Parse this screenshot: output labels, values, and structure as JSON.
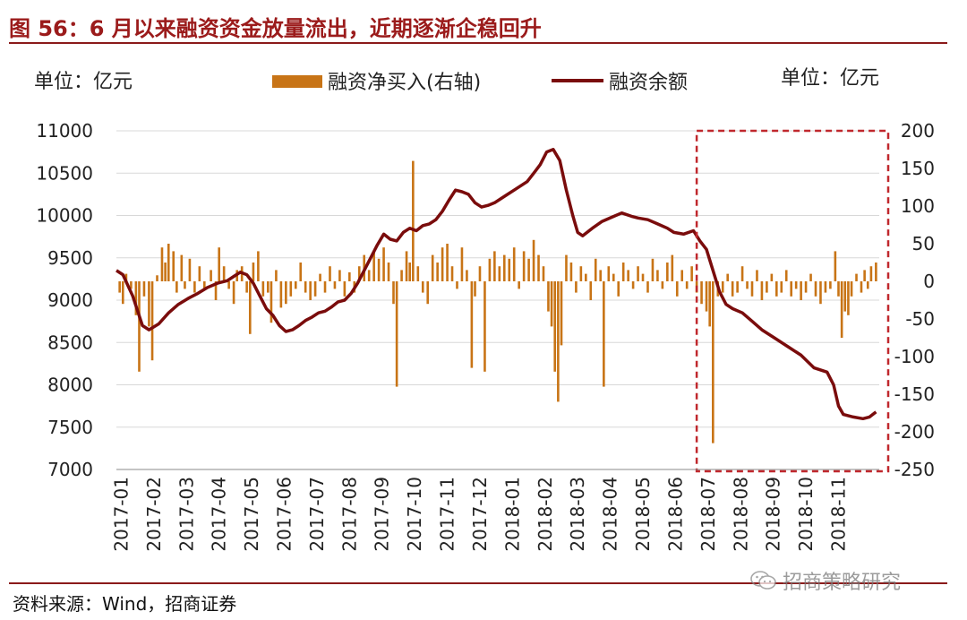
{
  "header": {
    "title": "图 56：6 月以来融资资金放量流出，近期逐渐企稳回升"
  },
  "footer": {
    "source": "资料来源：Wind，招商证券",
    "watermark": "招商策略研究"
  },
  "chart_data": {
    "type": "bar+line",
    "left_axis_unit": "单位：亿元",
    "right_axis_unit": "单位：亿元",
    "legend": [
      {
        "name": "融资净买入(右轴)",
        "kind": "bar",
        "color": "#c87416"
      },
      {
        "name": "融资余额",
        "kind": "line",
        "color": "#7a0c0c"
      }
    ],
    "colors": {
      "bar": "#c87416",
      "line": "#7a0c0c",
      "highlight_box": "#c0282d",
      "grid": "#d8d8d8"
    },
    "left_axis": {
      "min": 7000,
      "max": 11000,
      "ticks": [
        "11000",
        "10500",
        "10000",
        "9500",
        "9000",
        "8500",
        "8000",
        "7500",
        "7000"
      ]
    },
    "right_axis": {
      "min": -250,
      "max": 200,
      "ticks": [
        "200",
        "150",
        "100",
        "50",
        "0",
        "-50",
        "-100",
        "-150",
        "-200",
        "-250"
      ]
    },
    "x_ticks": [
      "2017-01",
      "2017-02",
      "2017-03",
      "2017-04",
      "2017-05",
      "2017-06",
      "2017-07",
      "2017-08",
      "2017-09",
      "2017-10",
      "2017-11",
      "2017-12",
      "2018-01",
      "2018-02",
      "2018-03",
      "2018-04",
      "2018-05",
      "2018-06",
      "2018-07",
      "2018-08",
      "2018-09",
      "2018-10",
      "2018-11"
    ],
    "x_range": [
      0,
      23.4
    ],
    "highlight_range": {
      "x_from": 17.8,
      "x_to": 23.4,
      "note": "2018-06 to 2018-11"
    },
    "series_balance": {
      "name": "融资余额",
      "points": [
        [
          0,
          9350
        ],
        [
          0.2,
          9300
        ],
        [
          0.5,
          9050
        ],
        [
          0.8,
          8700
        ],
        [
          1.0,
          8650
        ],
        [
          1.3,
          8720
        ],
        [
          1.6,
          8850
        ],
        [
          1.9,
          8950
        ],
        [
          2.2,
          9020
        ],
        [
          2.5,
          9080
        ],
        [
          2.8,
          9150
        ],
        [
          3.1,
          9200
        ],
        [
          3.4,
          9230
        ],
        [
          3.6,
          9280
        ],
        [
          3.8,
          9330
        ],
        [
          4.0,
          9300
        ],
        [
          4.2,
          9200
        ],
        [
          4.4,
          9050
        ],
        [
          4.6,
          8900
        ],
        [
          4.8,
          8820
        ],
        [
          5.0,
          8700
        ],
        [
          5.2,
          8630
        ],
        [
          5.4,
          8650
        ],
        [
          5.6,
          8700
        ],
        [
          5.8,
          8760
        ],
        [
          6.0,
          8800
        ],
        [
          6.2,
          8850
        ],
        [
          6.4,
          8870
        ],
        [
          6.6,
          8920
        ],
        [
          6.8,
          8980
        ],
        [
          7.0,
          9000
        ],
        [
          7.2,
          9080
        ],
        [
          7.4,
          9200
        ],
        [
          7.6,
          9350
        ],
        [
          7.8,
          9500
        ],
        [
          8.0,
          9650
        ],
        [
          8.2,
          9780
        ],
        [
          8.4,
          9720
        ],
        [
          8.6,
          9700
        ],
        [
          8.8,
          9800
        ],
        [
          9.0,
          9850
        ],
        [
          9.2,
          9820
        ],
        [
          9.4,
          9880
        ],
        [
          9.6,
          9900
        ],
        [
          9.8,
          9950
        ],
        [
          10.0,
          10050
        ],
        [
          10.2,
          10180
        ],
        [
          10.4,
          10300
        ],
        [
          10.6,
          10280
        ],
        [
          10.8,
          10250
        ],
        [
          11.0,
          10150
        ],
        [
          11.2,
          10100
        ],
        [
          11.4,
          10120
        ],
        [
          11.6,
          10150
        ],
        [
          11.8,
          10200
        ],
        [
          12.0,
          10250
        ],
        [
          12.2,
          10300
        ],
        [
          12.4,
          10350
        ],
        [
          12.6,
          10400
        ],
        [
          12.8,
          10500
        ],
        [
          13.0,
          10600
        ],
        [
          13.2,
          10750
        ],
        [
          13.4,
          10780
        ],
        [
          13.6,
          10650
        ],
        [
          13.8,
          10300
        ],
        [
          14.0,
          10000
        ],
        [
          14.15,
          9800
        ],
        [
          14.3,
          9760
        ],
        [
          14.6,
          9850
        ],
        [
          14.9,
          9930
        ],
        [
          15.2,
          9980
        ],
        [
          15.5,
          10030
        ],
        [
          15.8,
          9990
        ],
        [
          16.0,
          9970
        ],
        [
          16.3,
          9950
        ],
        [
          16.6,
          9900
        ],
        [
          16.9,
          9850
        ],
        [
          17.1,
          9800
        ],
        [
          17.4,
          9780
        ],
        [
          17.7,
          9820
        ],
        [
          17.9,
          9700
        ],
        [
          18.1,
          9600
        ],
        [
          18.3,
          9350
        ],
        [
          18.5,
          9100
        ],
        [
          18.7,
          8950
        ],
        [
          18.9,
          8900
        ],
        [
          19.2,
          8850
        ],
        [
          19.5,
          8750
        ],
        [
          19.8,
          8650
        ],
        [
          20.2,
          8550
        ],
        [
          20.6,
          8450
        ],
        [
          21.0,
          8350
        ],
        [
          21.4,
          8200
        ],
        [
          21.8,
          8150
        ],
        [
          22.0,
          8000
        ],
        [
          22.15,
          7750
        ],
        [
          22.3,
          7650
        ],
        [
          22.6,
          7620
        ],
        [
          22.9,
          7600
        ],
        [
          23.1,
          7620
        ],
        [
          23.3,
          7680
        ]
      ]
    },
    "series_net_buy": {
      "name": "融资净买入(右轴)",
      "bars": [
        [
          0.1,
          -15
        ],
        [
          0.2,
          -30
        ],
        [
          0.3,
          10
        ],
        [
          0.45,
          -10
        ],
        [
          0.6,
          -45
        ],
        [
          0.7,
          -120
        ],
        [
          0.85,
          -20
        ],
        [
          1.0,
          -60
        ],
        [
          1.1,
          -105
        ],
        [
          1.25,
          8
        ],
        [
          1.4,
          45
        ],
        [
          1.5,
          25
        ],
        [
          1.6,
          50
        ],
        [
          1.75,
          40
        ],
        [
          1.85,
          -15
        ],
        [
          2.0,
          35
        ],
        [
          2.1,
          -10
        ],
        [
          2.25,
          30
        ],
        [
          2.4,
          -15
        ],
        [
          2.55,
          20
        ],
        [
          2.7,
          -10
        ],
        [
          2.9,
          15
        ],
        [
          3.05,
          -25
        ],
        [
          3.15,
          45
        ],
        [
          3.3,
          20
        ],
        [
          3.45,
          -10
        ],
        [
          3.6,
          -30
        ],
        [
          3.7,
          15
        ],
        [
          3.85,
          20
        ],
        [
          4.0,
          -15
        ],
        [
          4.1,
          -70
        ],
        [
          4.2,
          25
        ],
        [
          4.35,
          40
        ],
        [
          4.5,
          -20
        ],
        [
          4.65,
          -15
        ],
        [
          4.75,
          -55
        ],
        [
          4.9,
          15
        ],
        [
          5.05,
          -35
        ],
        [
          5.2,
          -30
        ],
        [
          5.35,
          -20
        ],
        [
          5.5,
          -10
        ],
        [
          5.65,
          25
        ],
        [
          5.8,
          -15
        ],
        [
          5.95,
          -25
        ],
        [
          6.1,
          -20
        ],
        [
          6.25,
          10
        ],
        [
          6.4,
          -15
        ],
        [
          6.55,
          20
        ],
        [
          6.7,
          -10
        ],
        [
          6.85,
          15
        ],
        [
          7.0,
          -20
        ],
        [
          7.15,
          12
        ],
        [
          7.3,
          -15
        ],
        [
          7.45,
          20
        ],
        [
          7.6,
          35
        ],
        [
          7.75,
          15
        ],
        [
          7.9,
          40
        ],
        [
          8.05,
          30
        ],
        [
          8.2,
          45
        ],
        [
          8.35,
          25
        ],
        [
          8.5,
          -30
        ],
        [
          8.6,
          -140
        ],
        [
          8.75,
          15
        ],
        [
          8.9,
          40
        ],
        [
          9.0,
          25
        ],
        [
          9.1,
          160
        ],
        [
          9.25,
          20
        ],
        [
          9.4,
          -15
        ],
        [
          9.55,
          -30
        ],
        [
          9.7,
          35
        ],
        [
          9.85,
          25
        ],
        [
          10.0,
          45
        ],
        [
          10.15,
          50
        ],
        [
          10.3,
          20
        ],
        [
          10.45,
          -10
        ],
        [
          10.6,
          45
        ],
        [
          10.75,
          15
        ],
        [
          10.9,
          -115
        ],
        [
          11.0,
          -20
        ],
        [
          11.15,
          20
        ],
        [
          11.3,
          -120
        ],
        [
          11.45,
          30
        ],
        [
          11.6,
          40
        ],
        [
          11.75,
          20
        ],
        [
          11.9,
          35
        ],
        [
          12.05,
          30
        ],
        [
          12.2,
          45
        ],
        [
          12.35,
          -10
        ],
        [
          12.5,
          40
        ],
        [
          12.65,
          30
        ],
        [
          12.8,
          55
        ],
        [
          12.95,
          35
        ],
        [
          13.1,
          20
        ],
        [
          13.25,
          -40
        ],
        [
          13.35,
          -60
        ],
        [
          13.45,
          -120
        ],
        [
          13.55,
          -160
        ],
        [
          13.65,
          -85
        ],
        [
          13.8,
          35
        ],
        [
          13.95,
          25
        ],
        [
          14.1,
          -15
        ],
        [
          14.25,
          20
        ],
        [
          14.4,
          10
        ],
        [
          14.55,
          -25
        ],
        [
          14.7,
          30
        ],
        [
          14.85,
          15
        ],
        [
          14.95,
          -140
        ],
        [
          15.1,
          20
        ],
        [
          15.25,
          10
        ],
        [
          15.4,
          -20
        ],
        [
          15.55,
          25
        ],
        [
          15.7,
          15
        ],
        [
          15.85,
          -10
        ],
        [
          16.0,
          20
        ],
        [
          16.15,
          10
        ],
        [
          16.3,
          -15
        ],
        [
          16.45,
          30
        ],
        [
          16.6,
          15
        ],
        [
          16.75,
          -10
        ],
        [
          16.9,
          25
        ],
        [
          17.05,
          35
        ],
        [
          17.2,
          -20
        ],
        [
          17.35,
          15
        ],
        [
          17.5,
          -10
        ],
        [
          17.65,
          20
        ],
        [
          17.8,
          -15
        ],
        [
          17.95,
          -30
        ],
        [
          18.1,
          -40
        ],
        [
          18.2,
          -60
        ],
        [
          18.3,
          -215
        ],
        [
          18.45,
          -20
        ],
        [
          18.6,
          -15
        ],
        [
          18.75,
          10
        ],
        [
          18.9,
          -20
        ],
        [
          19.05,
          -15
        ],
        [
          19.2,
          20
        ],
        [
          19.35,
          -10
        ],
        [
          19.5,
          -20
        ],
        [
          19.65,
          15
        ],
        [
          19.8,
          -25
        ],
        [
          19.95,
          -15
        ],
        [
          20.1,
          10
        ],
        [
          20.25,
          -20
        ],
        [
          20.4,
          -15
        ],
        [
          20.55,
          15
        ],
        [
          20.7,
          -20
        ],
        [
          20.85,
          -10
        ],
        [
          21.0,
          -25
        ],
        [
          21.15,
          -15
        ],
        [
          21.3,
          10
        ],
        [
          21.45,
          -20
        ],
        [
          21.6,
          -30
        ],
        [
          21.75,
          -15
        ],
        [
          21.9,
          -10
        ],
        [
          22.05,
          40
        ],
        [
          22.15,
          -20
        ],
        [
          22.25,
          -75
        ],
        [
          22.35,
          -40
        ],
        [
          22.45,
          -45
        ],
        [
          22.55,
          -20
        ],
        [
          22.7,
          10
        ],
        [
          22.85,
          -15
        ],
        [
          22.95,
          15
        ],
        [
          23.05,
          -10
        ],
        [
          23.15,
          20
        ],
        [
          23.3,
          25
        ]
      ]
    }
  }
}
